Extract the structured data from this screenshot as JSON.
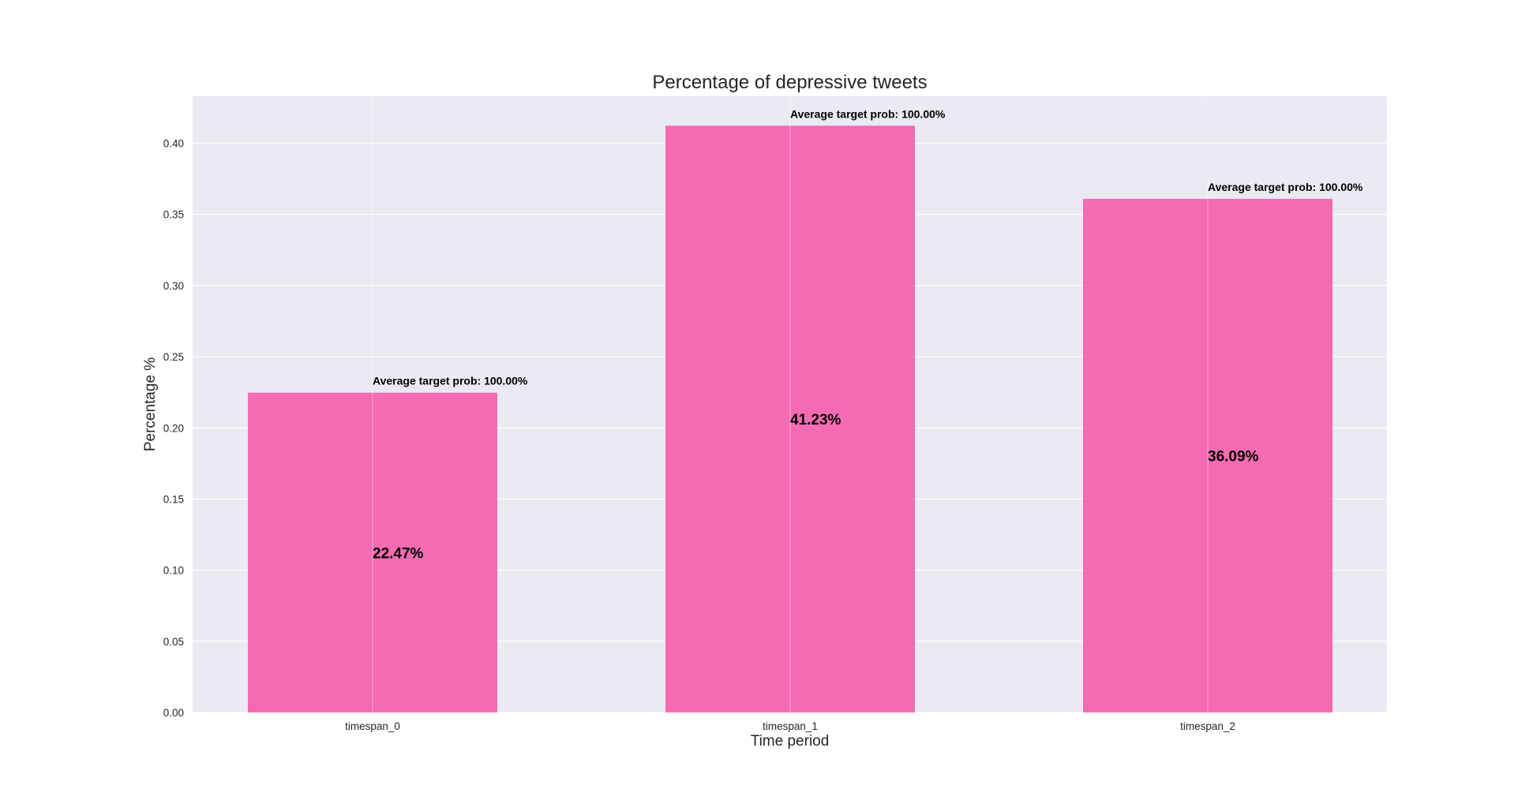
{
  "chart_data": {
    "type": "bar",
    "title": "Percentage of depressive tweets",
    "xlabel": "Time period",
    "ylabel": "Percentage %",
    "categories": [
      "timespan_0",
      "timespan_1",
      "timespan_2"
    ],
    "values": [
      0.2247,
      0.4123,
      0.3609
    ],
    "value_labels": [
      "22.47%",
      "41.23%",
      "36.09%"
    ],
    "annotations": [
      "Average target prob: 100.00%",
      "Average target prob: 100.00%",
      "Average target prob: 100.00%"
    ],
    "ylim": [
      0,
      0.433
    ],
    "yticks": [
      0.0,
      0.05,
      0.1,
      0.15,
      0.2,
      0.25,
      0.3,
      0.35,
      0.4
    ],
    "ytick_labels": [
      "0.00",
      "0.05",
      "0.10",
      "0.15",
      "0.20",
      "0.25",
      "0.30",
      "0.35",
      "0.40"
    ],
    "grid": true,
    "style": "seaborn-darkgrid",
    "colors": {
      "bar": "#f564ae",
      "plot_background": "#eaeaf2",
      "grid": "#ffffff",
      "text": "#262626"
    }
  }
}
